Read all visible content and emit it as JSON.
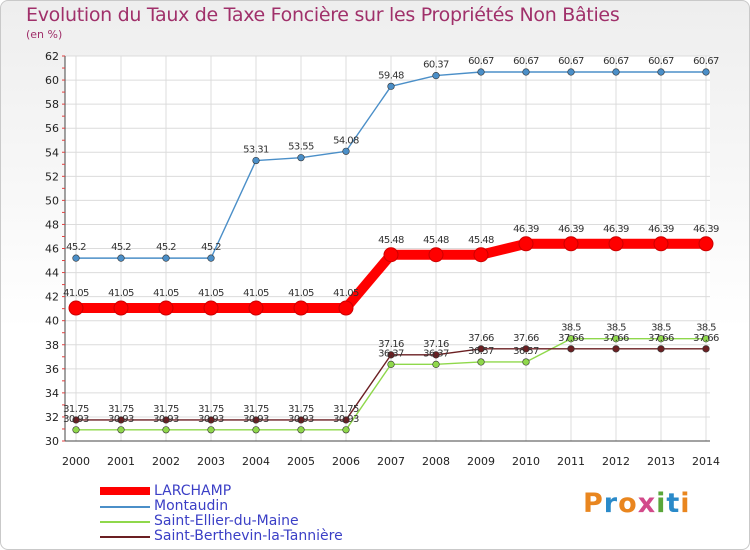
{
  "title": "Evolution du Taux de Taxe Foncière sur les Propriétés Non Bâties",
  "subtitle": "(en %)",
  "logo": {
    "letters": [
      "P",
      "r",
      "o",
      "x",
      "i",
      "t",
      "i"
    ],
    "colors": [
      "#e9861f",
      "#2a8ac9",
      "#e9861f",
      "#d24a8a",
      "#5aa63a",
      "#2a8ac9",
      "#e9861f"
    ]
  },
  "chart_data": {
    "type": "line",
    "title": "Evolution du Taux de Taxe Foncière sur les Propriétés Non Bâties",
    "ylabel": "(en %)",
    "xlabel": "",
    "x": [
      "2000",
      "2001",
      "2002",
      "2003",
      "2004",
      "2005",
      "2006",
      "2007",
      "2008",
      "2009",
      "2010",
      "2011",
      "2012",
      "2013",
      "2014"
    ],
    "ylim": [
      30,
      62
    ],
    "yticks": [
      30,
      32,
      34,
      36,
      38,
      40,
      42,
      44,
      46,
      48,
      50,
      52,
      54,
      56,
      58,
      60,
      62
    ],
    "grid": true,
    "legend": "bottom-left",
    "series": [
      {
        "name": "LARCHAMP",
        "color": "#ff0000",
        "values": [
          41.05,
          41.05,
          41.05,
          41.05,
          41.05,
          41.05,
          41.05,
          45.48,
          45.48,
          45.48,
          46.39,
          46.39,
          46.39,
          46.39,
          46.39
        ],
        "labels": [
          "41.05",
          "41.05",
          "41.05",
          "41.05",
          "41.05",
          "41.05",
          "41.05",
          "45.48",
          "45.48",
          "45.48",
          "46.39",
          "46.39",
          "46.39",
          "46.39",
          "46.39"
        ]
      },
      {
        "name": "Montaudin",
        "color": "#4b8fc8",
        "values": [
          45.2,
          45.2,
          45.2,
          45.2,
          53.31,
          53.55,
          54.08,
          59.48,
          60.37,
          60.67,
          60.67,
          60.67,
          60.67,
          60.67,
          60.67
        ],
        "labels": [
          "45.2",
          "45.2",
          "45.2",
          "45.2",
          "53.31",
          "53.55",
          "54.08",
          "59.48",
          "60.37",
          "60.67",
          "60.67",
          "60.67",
          "60.67",
          "60.67",
          "60.67"
        ]
      },
      {
        "name": "Saint-Ellier-du-Maine",
        "color": "#8fd84b",
        "values": [
          30.93,
          30.93,
          30.93,
          30.93,
          30.93,
          30.93,
          30.93,
          36.37,
          36.37,
          36.57,
          36.57,
          38.5,
          38.5,
          38.5,
          38.5
        ],
        "labels": [
          "30.93",
          "30.93",
          "30.93",
          "30.93",
          "30.93",
          "30.93",
          "30.93",
          "36.37",
          "36.37",
          "36.57",
          "36.57",
          "38.5",
          "38.5",
          "38.5",
          "38.5"
        ]
      },
      {
        "name": "Saint-Berthevin-la-Tannière",
        "color": "#6b1f22",
        "values": [
          31.75,
          31.75,
          31.75,
          31.75,
          31.75,
          31.75,
          31.75,
          37.16,
          37.16,
          37.66,
          37.66,
          37.66,
          37.66,
          37.66,
          37.66
        ],
        "labels": [
          "31.75",
          "31.75",
          "31.75",
          "31.75",
          "31.75",
          "31.75",
          "31.75",
          "37.16",
          "37.16",
          "37.66",
          "37.66",
          "37.66",
          "37.66",
          "37.66",
          "37.66"
        ]
      }
    ]
  }
}
